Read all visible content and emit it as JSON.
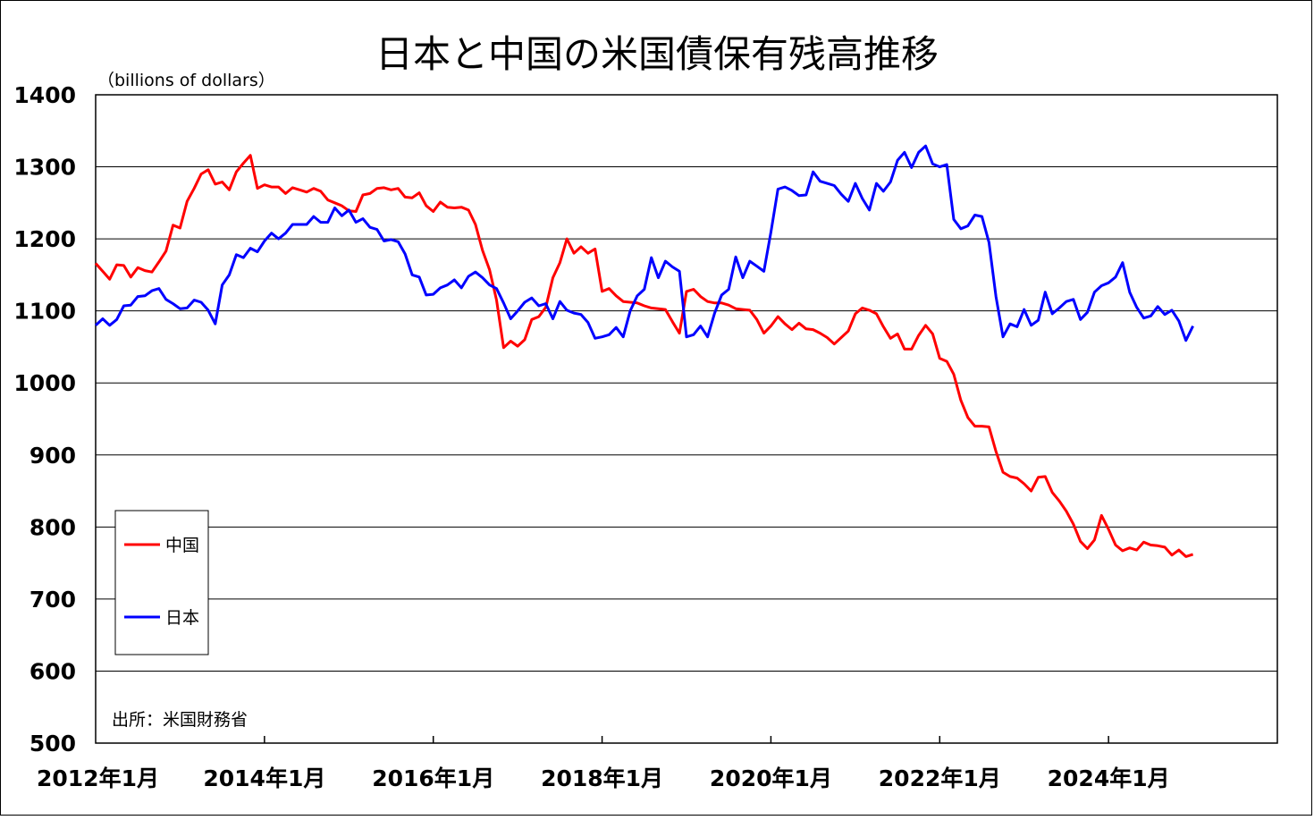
{
  "chart_data": {
    "type": "line",
    "title": "日本と中国の米国債保有残高推移",
    "unit_label": "（billions of dollars）",
    "source": "出所：米国財務省",
    "ylim": [
      500,
      1400
    ],
    "yticks": [
      "500",
      "600",
      "700",
      "800",
      "900",
      "1000",
      "1100",
      "1200",
      "1300",
      "1400"
    ],
    "x_start": "2012-01",
    "x_end": "2025-12",
    "xticks": [
      "2012年1月",
      "2014年1月",
      "2016年1月",
      "2018年1月",
      "2020年1月",
      "2022年1月",
      "2024年1月"
    ],
    "grid": true,
    "legend_position": "bottom-left",
    "series": [
      {
        "name": "中国",
        "color": "#ff0000",
        "values": [
          1166,
          1155,
          1144,
          1164,
          1163,
          1147,
          1160,
          1156,
          1154,
          1168,
          1183,
          1219,
          1215,
          1252,
          1270,
          1290,
          1296,
          1276,
          1279,
          1268,
          1293,
          1305,
          1316,
          1270,
          1275,
          1272,
          1272,
          1263,
          1271,
          1268,
          1265,
          1270,
          1266,
          1254,
          1250,
          1246,
          1239,
          1238,
          1261,
          1263,
          1270,
          1271,
          1268,
          1270,
          1258,
          1257,
          1264,
          1246,
          1238,
          1251,
          1244,
          1243,
          1244,
          1240,
          1220,
          1184,
          1157,
          1115,
          1049,
          1058,
          1051,
          1060,
          1088,
          1092,
          1105,
          1146,
          1167,
          1200,
          1180,
          1189,
          1180,
          1186,
          1127,
          1131,
          1121,
          1113,
          1112,
          1111,
          1107,
          1104,
          1103,
          1102,
          1085,
          1069,
          1127,
          1130,
          1120,
          1113,
          1111,
          1111,
          1108,
          1103,
          1102,
          1101,
          1088,
          1069,
          1079,
          1092,
          1082,
          1074,
          1083,
          1075,
          1074,
          1069,
          1063,
          1054,
          1063,
          1072,
          1096,
          1104,
          1101,
          1096,
          1078,
          1062,
          1068,
          1047,
          1047,
          1066,
          1080,
          1068,
          1034,
          1030,
          1012,
          976,
          952,
          940,
          940,
          939,
          905,
          876,
          870,
          868,
          860,
          850,
          869,
          870,
          848,
          836,
          822,
          804,
          780,
          770,
          782,
          816,
          797,
          775,
          767,
          771,
          768,
          779,
          775,
          774,
          772,
          761,
          768,
          759,
          762
        ]
      },
      {
        "name": "日本",
        "color": "#0000ff",
        "values": [
          1080,
          1089,
          1080,
          1088,
          1107,
          1108,
          1120,
          1121,
          1128,
          1131,
          1116,
          1110,
          1103,
          1104,
          1115,
          1112,
          1101,
          1082,
          1136,
          1150,
          1178,
          1174,
          1187,
          1182,
          1197,
          1208,
          1200,
          1208,
          1220,
          1220,
          1220,
          1231,
          1223,
          1223,
          1243,
          1232,
          1240,
          1223,
          1228,
          1216,
          1213,
          1197,
          1199,
          1196,
          1179,
          1150,
          1147,
          1122,
          1123,
          1132,
          1136,
          1143,
          1132,
          1148,
          1154,
          1146,
          1136,
          1131,
          1111,
          1089,
          1100,
          1112,
          1118,
          1107,
          1110,
          1089,
          1113,
          1101,
          1097,
          1095,
          1084,
          1062,
          1064,
          1067,
          1077,
          1064,
          1100,
          1121,
          1130,
          1174,
          1146,
          1169,
          1161,
          1155,
          1064,
          1067,
          1079,
          1064,
          1097,
          1122,
          1130,
          1175,
          1146,
          1169,
          1162,
          1155,
          1209,
          1269,
          1272,
          1267,
          1260,
          1261,
          1293,
          1280,
          1277,
          1274,
          1262,
          1252,
          1277,
          1256,
          1240,
          1277,
          1266,
          1279,
          1309,
          1320,
          1299,
          1320,
          1329,
          1304,
          1300,
          1303,
          1227,
          1214,
          1218,
          1233,
          1231,
          1195,
          1120,
          1064,
          1082,
          1078,
          1102,
          1080,
          1087,
          1126,
          1096,
          1104,
          1113,
          1116,
          1088,
          1098,
          1126,
          1135,
          1139,
          1147,
          1167,
          1126,
          1105,
          1090,
          1093,
          1106,
          1095,
          1101,
          1086,
          1059,
          1079
        ]
      }
    ]
  }
}
